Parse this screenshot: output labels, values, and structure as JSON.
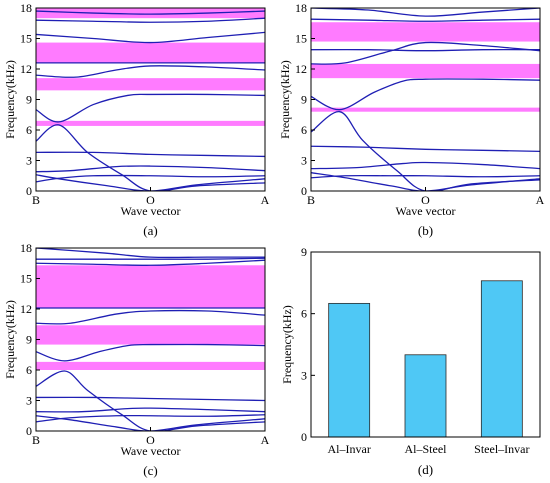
{
  "colors": {
    "curve": "#1f1fb4",
    "gap": "#ff7bff",
    "bar": "#4fc8f5",
    "axis": "#000000"
  },
  "chart_data": [
    {
      "id": "a",
      "type": "line",
      "caption": "(a)",
      "xlabel": "Wave vector",
      "ylabel": "Frequency(kHz)",
      "ylim": [
        0,
        18
      ],
      "yticks": [
        0,
        3,
        6,
        9,
        12,
        15,
        18
      ],
      "xlim": [
        0,
        2
      ],
      "xticks": [
        {
          "x": 0,
          "label": "B"
        },
        {
          "x": 1,
          "label": "O"
        },
        {
          "x": 2,
          "label": "A"
        }
      ],
      "band_gaps": [
        [
          6.4,
          6.9
        ],
        [
          9.9,
          11.1
        ],
        [
          12.6,
          14.6
        ],
        [
          17.0,
          18.0
        ]
      ],
      "series": [
        {
          "points": [
            [
              0,
              0.9
            ],
            [
              0.2,
              1.25
            ],
            [
              0.5,
              1.5
            ],
            [
              1,
              1.5
            ],
            [
              1.5,
              1.4
            ],
            [
              2,
              1.5
            ]
          ]
        },
        {
          "points": [
            [
              0,
              1.6
            ],
            [
              0.2,
              1.2
            ],
            [
              0.6,
              0.55
            ],
            [
              1,
              0
            ],
            [
              1.4,
              0.6
            ],
            [
              2,
              1.2
            ]
          ]
        },
        {
          "points": [
            [
              0,
              1.9
            ],
            [
              0.3,
              2.0
            ],
            [
              0.7,
              2.4
            ],
            [
              1,
              2.45
            ],
            [
              1.5,
              2.3
            ],
            [
              2,
              2.0
            ]
          ]
        },
        {
          "points": [
            [
              0,
              4.9
            ],
            [
              0.2,
              6.5
            ],
            [
              0.45,
              3.8
            ],
            [
              0.75,
              1.6
            ],
            [
              1,
              0
            ],
            [
              1.4,
              0.5
            ],
            [
              2,
              0.8
            ]
          ]
        },
        {
          "points": [
            [
              0,
              3.8
            ],
            [
              0.5,
              3.8
            ],
            [
              1,
              3.6
            ],
            [
              1.5,
              3.5
            ],
            [
              2,
              3.4
            ]
          ]
        },
        {
          "points": [
            [
              0,
              8.0
            ],
            [
              0.2,
              6.8
            ],
            [
              0.5,
              8.5
            ],
            [
              0.8,
              9.4
            ],
            [
              1,
              9.5
            ],
            [
              1.5,
              9.5
            ],
            [
              2,
              9.4
            ]
          ]
        },
        {
          "points": [
            [
              0,
              11.4
            ],
            [
              0.35,
              11.2
            ],
            [
              0.7,
              11.9
            ],
            [
              1,
              12.3
            ],
            [
              1.5,
              12.2
            ],
            [
              2,
              11.9
            ]
          ]
        },
        {
          "points": [
            [
              0,
              12.6
            ],
            [
              0.5,
              12.6
            ],
            [
              1,
              12.6
            ],
            [
              1.5,
              12.6
            ],
            [
              2,
              12.6
            ]
          ]
        },
        {
          "points": [
            [
              0,
              15.4
            ],
            [
              0.5,
              15.0
            ],
            [
              1,
              14.6
            ],
            [
              1.5,
              15.1
            ],
            [
              2,
              15.6
            ]
          ]
        },
        {
          "points": [
            [
              0,
              16.8
            ],
            [
              0.5,
              16.7
            ],
            [
              1,
              16.6
            ],
            [
              1.5,
              16.7
            ],
            [
              2,
              17.0
            ]
          ]
        },
        {
          "points": [
            [
              0,
              17.7
            ],
            [
              0.5,
              17.5
            ],
            [
              1,
              17.4
            ],
            [
              1.5,
              17.5
            ],
            [
              2,
              17.7
            ]
          ]
        }
      ]
    },
    {
      "id": "b",
      "type": "line",
      "caption": "(b)",
      "xlabel": "Wave vector",
      "ylabel": "Frequency(kHz)",
      "ylim": [
        0,
        18
      ],
      "yticks": [
        0,
        3,
        6,
        9,
        12,
        15,
        18
      ],
      "xlim": [
        0,
        2
      ],
      "xticks": [
        {
          "x": 0,
          "label": "B"
        },
        {
          "x": 1,
          "label": "O"
        },
        {
          "x": 2,
          "label": "A"
        }
      ],
      "band_gaps": [
        [
          7.8,
          8.2
        ],
        [
          11.1,
          12.5
        ],
        [
          14.7,
          16.6
        ]
      ],
      "series": [
        {
          "points": [
            [
              0,
              1.3
            ],
            [
              0.3,
              1.5
            ],
            [
              0.7,
              1.5
            ],
            [
              1,
              1.5
            ],
            [
              1.5,
              1.4
            ],
            [
              2,
              1.5
            ]
          ]
        },
        {
          "points": [
            [
              0,
              1.8
            ],
            [
              0.3,
              1.3
            ],
            [
              0.7,
              0.5
            ],
            [
              1,
              0
            ],
            [
              1.4,
              0.6
            ],
            [
              2,
              1.2
            ]
          ]
        },
        {
          "points": [
            [
              0,
              2.2
            ],
            [
              0.4,
              2.3
            ],
            [
              0.8,
              2.7
            ],
            [
              1,
              2.8
            ],
            [
              1.5,
              2.6
            ],
            [
              2,
              2.2
            ]
          ]
        },
        {
          "points": [
            [
              0,
              5.8
            ],
            [
              0.25,
              7.8
            ],
            [
              0.45,
              5.0
            ],
            [
              0.75,
              2.0
            ],
            [
              1,
              0
            ],
            [
              1.4,
              0.7
            ],
            [
              2,
              1.1
            ]
          ]
        },
        {
          "points": [
            [
              0,
              4.4
            ],
            [
              0.5,
              4.3
            ],
            [
              1,
              4.1
            ],
            [
              1.5,
              4.0
            ],
            [
              2,
              3.9
            ]
          ]
        },
        {
          "points": [
            [
              0,
              9.3
            ],
            [
              0.25,
              8.0
            ],
            [
              0.55,
              9.7
            ],
            [
              0.8,
              10.8
            ],
            [
              1,
              11.0
            ],
            [
              1.5,
              11.0
            ],
            [
              2,
              10.9
            ]
          ]
        },
        {
          "points": [
            [
              0,
              12.5
            ],
            [
              0.3,
              12.6
            ],
            [
              0.7,
              13.8
            ],
            [
              1,
              14.6
            ],
            [
              1.5,
              14.3
            ],
            [
              2,
              13.8
            ]
          ]
        },
        {
          "points": [
            [
              0,
              13.9
            ],
            [
              0.5,
              13.9
            ],
            [
              1,
              13.8
            ],
            [
              1.5,
              13.9
            ],
            [
              2,
              13.9
            ]
          ]
        },
        {
          "points": [
            [
              0,
              16.9
            ],
            [
              0.5,
              16.8
            ],
            [
              1,
              16.7
            ],
            [
              1.5,
              16.8
            ],
            [
              2,
              16.9
            ]
          ]
        },
        {
          "points": [
            [
              0,
              18.0
            ],
            [
              0.5,
              17.8
            ],
            [
              1,
              17.2
            ],
            [
              1.5,
              17.6
            ],
            [
              2,
              18.0
            ]
          ]
        }
      ]
    },
    {
      "id": "c",
      "type": "line",
      "caption": "(c)",
      "xlabel": "Wave vector",
      "ylabel": "Frequency(kHz)",
      "ylim": [
        0,
        18
      ],
      "yticks": [
        0,
        3,
        6,
        9,
        12,
        15,
        18
      ],
      "xlim": [
        0,
        2
      ],
      "xticks": [
        {
          "x": 0,
          "label": "B"
        },
        {
          "x": 1,
          "label": "O"
        },
        {
          "x": 2,
          "label": "A"
        }
      ],
      "band_gaps": [
        [
          6.0,
          6.8
        ],
        [
          8.5,
          10.4
        ],
        [
          12.1,
          16.3
        ]
      ],
      "series": [
        {
          "points": [
            [
              0,
              0.9
            ],
            [
              0.3,
              1.3
            ],
            [
              0.7,
              1.5
            ],
            [
              1,
              1.5
            ],
            [
              1.5,
              1.45
            ],
            [
              2,
              1.6
            ]
          ]
        },
        {
          "points": [
            [
              0,
              1.5
            ],
            [
              0.3,
              1.1
            ],
            [
              0.7,
              0.4
            ],
            [
              1,
              0
            ],
            [
              1.4,
              0.6
            ],
            [
              2,
              1.2
            ]
          ]
        },
        {
          "points": [
            [
              0,
              1.9
            ],
            [
              0.4,
              1.9
            ],
            [
              0.8,
              2.2
            ],
            [
              1,
              2.25
            ],
            [
              1.5,
              2.1
            ],
            [
              2,
              1.9
            ]
          ]
        },
        {
          "points": [
            [
              0,
              4.4
            ],
            [
              0.25,
              5.9
            ],
            [
              0.45,
              4.0
            ],
            [
              0.75,
              1.6
            ],
            [
              1,
              0
            ],
            [
              1.4,
              0.5
            ],
            [
              2,
              0.9
            ]
          ]
        },
        {
          "points": [
            [
              0,
              3.3
            ],
            [
              0.5,
              3.3
            ],
            [
              1,
              3.2
            ],
            [
              1.5,
              3.1
            ],
            [
              2,
              3.0
            ]
          ]
        },
        {
          "points": [
            [
              0,
              7.8
            ],
            [
              0.25,
              6.9
            ],
            [
              0.55,
              7.8
            ],
            [
              0.8,
              8.4
            ],
            [
              1,
              8.5
            ],
            [
              1.5,
              8.5
            ],
            [
              2,
              8.4
            ]
          ]
        },
        {
          "points": [
            [
              0,
              10.6
            ],
            [
              0.3,
              10.6
            ],
            [
              0.7,
              11.5
            ],
            [
              1,
              11.8
            ],
            [
              1.5,
              11.8
            ],
            [
              2,
              11.4
            ]
          ]
        },
        {
          "points": [
            [
              0,
              12.1
            ],
            [
              0.5,
              12.1
            ],
            [
              1,
              12.1
            ],
            [
              1.5,
              12.1
            ],
            [
              2,
              12.1
            ]
          ]
        },
        {
          "points": [
            [
              0,
              16.5
            ],
            [
              0.5,
              16.4
            ],
            [
              1,
              16.3
            ],
            [
              1.5,
              16.5
            ],
            [
              2,
              16.8
            ]
          ]
        },
        {
          "points": [
            [
              0,
              16.9
            ],
            [
              0.5,
              16.9
            ],
            [
              1,
              16.9
            ],
            [
              1.5,
              16.9
            ],
            [
              2,
              17.0
            ]
          ]
        },
        {
          "points": [
            [
              0,
              18.0
            ],
            [
              0.6,
              17.5
            ],
            [
              1,
              17.1
            ],
            [
              1.5,
              17.1
            ],
            [
              2,
              17.1
            ]
          ]
        }
      ]
    },
    {
      "id": "d",
      "type": "bar",
      "caption": "(d)",
      "xlabel": "",
      "ylabel": "Frequency(kHz)",
      "ylim": [
        0,
        9
      ],
      "yticks": [
        0,
        3,
        6,
        9
      ],
      "categories": [
        "Al–Invar",
        "Al–Steel",
        "Steel–Invar"
      ],
      "values": [
        6.5,
        4.0,
        7.6
      ]
    }
  ]
}
